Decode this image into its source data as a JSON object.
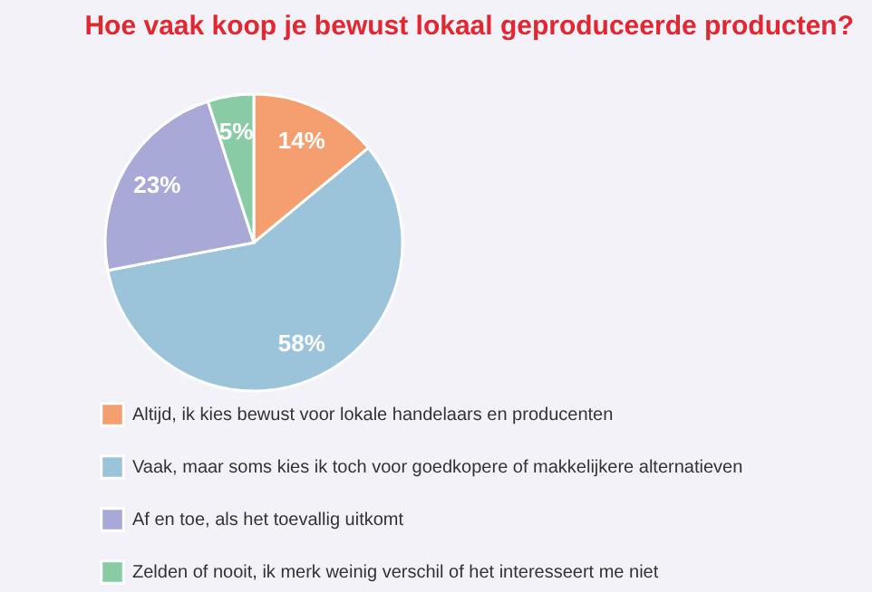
{
  "chart_data": {
    "type": "pie",
    "title": "Hoe vaak koop je bewust lokaal geproduceerde producten?",
    "categories": [
      "Altijd, ik kies bewust voor lokale handelaars en producenten",
      "Vaak, maar soms kies ik toch voor goedkopere of makkelijkere alternatieven",
      "Af en toe, als het toevallig uitkomt",
      "Zelden of nooit, ik merk weinig verschil of het interesseert me niet"
    ],
    "values": [
      14,
      58,
      23,
      5
    ],
    "colors": [
      "#f59e6f",
      "#9bc4da",
      "#a8a9d6",
      "#89cba4"
    ],
    "value_labels": [
      "14%",
      "58%",
      "23%",
      "5%"
    ],
    "legend": "bottom"
  }
}
